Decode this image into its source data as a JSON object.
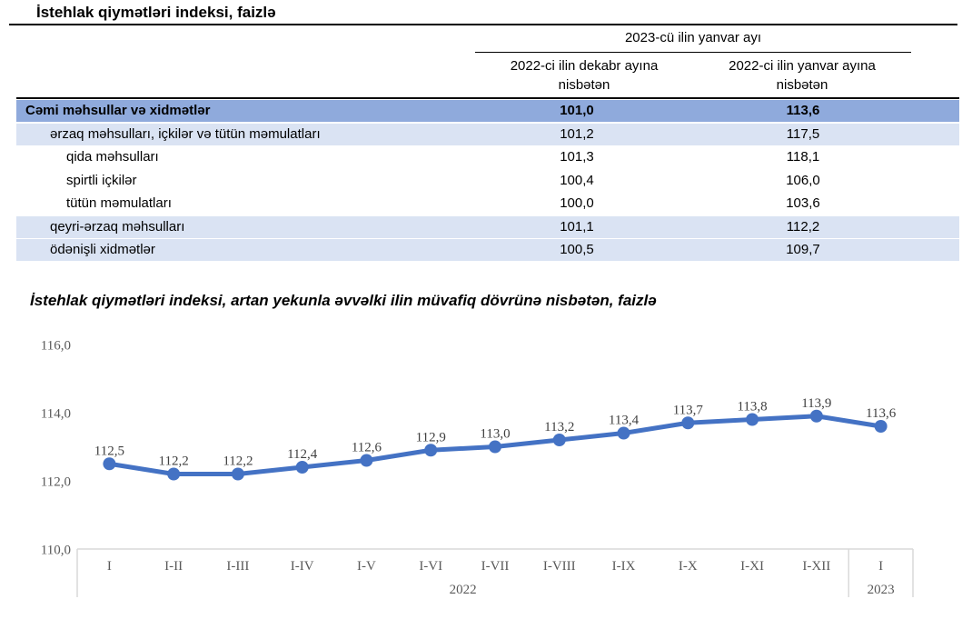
{
  "page": {
    "title": "İstehlak qiymətləri indeksi, faizlə"
  },
  "table": {
    "header": {
      "span": "2023-cü ilin yanvar ayı",
      "col1": "2022-ci ilin dekabr ayına nisbətən",
      "col2": "2022-ci ilin yanvar ayına nisbətən"
    },
    "rows": [
      {
        "label": "Cəmi məhsullar və xidmətlər",
        "dec": "101,0",
        "jan": "113,6"
      },
      {
        "label": "ərzaq məhsulları, içkilər və tütün məmulatları",
        "dec": "101,2",
        "jan": "117,5"
      },
      {
        "label": "qida məhsulları",
        "dec": "101,3",
        "jan": "118,1"
      },
      {
        "label": "spirtli içkilər",
        "dec": "100,4",
        "jan": "106,0"
      },
      {
        "label": "tütün məmulatları",
        "dec": "100,0",
        "jan": "103,6"
      },
      {
        "label": "qeyri-ərzaq məhsulları",
        "dec": "101,1",
        "jan": "112,2"
      },
      {
        "label": "ödənişli xidmətlər",
        "dec": "100,5",
        "jan": "109,7"
      }
    ]
  },
  "chart_title": "İstehlak qiymətləri indeksi, artan yekunla əvvəlki ilin müvafiq dövrünə nisbətən, faizlə",
  "chart_data": {
    "type": "line",
    "categories": [
      "I",
      "I-II",
      "I-III",
      "I-IV",
      "I-V",
      "I-VI",
      "I-VII",
      "I-VIII",
      "I-IX",
      "I-X",
      "I-XI",
      "I-XII",
      "I"
    ],
    "values": [
      112.5,
      112.2,
      112.2,
      112.4,
      112.6,
      112.9,
      113.0,
      113.2,
      113.4,
      113.7,
      113.8,
      113.9,
      113.6
    ],
    "data_labels": [
      "112,5",
      "112,2",
      "112,2",
      "112,4",
      "112,6",
      "112,9",
      "113,0",
      "113,2",
      "113,4",
      "113,7",
      "113,8",
      "113,9",
      "113,6"
    ],
    "year_groups": [
      {
        "label": "2022",
        "span": 12
      },
      {
        "label": "2023",
        "span": 1
      }
    ],
    "y_ticks": [
      {
        "label": "116,0",
        "value": 116
      },
      {
        "label": "114,0",
        "value": 114
      },
      {
        "label": "112,0",
        "value": 112
      },
      {
        "label": "110,0",
        "value": 110
      }
    ],
    "ylim": [
      110,
      116
    ],
    "xlabel": "",
    "ylabel": "",
    "legend": "none",
    "grid": "off",
    "line_color": "#4472C4",
    "marker": "circle"
  },
  "colors": {
    "total_row_bg": "#8FAADC",
    "alt_row_bg": "#DAE3F3",
    "accent_line": "#4472C4",
    "axis_line": "#D9D9D9",
    "axis_text": "#595959",
    "data_label_text": "#404040"
  }
}
